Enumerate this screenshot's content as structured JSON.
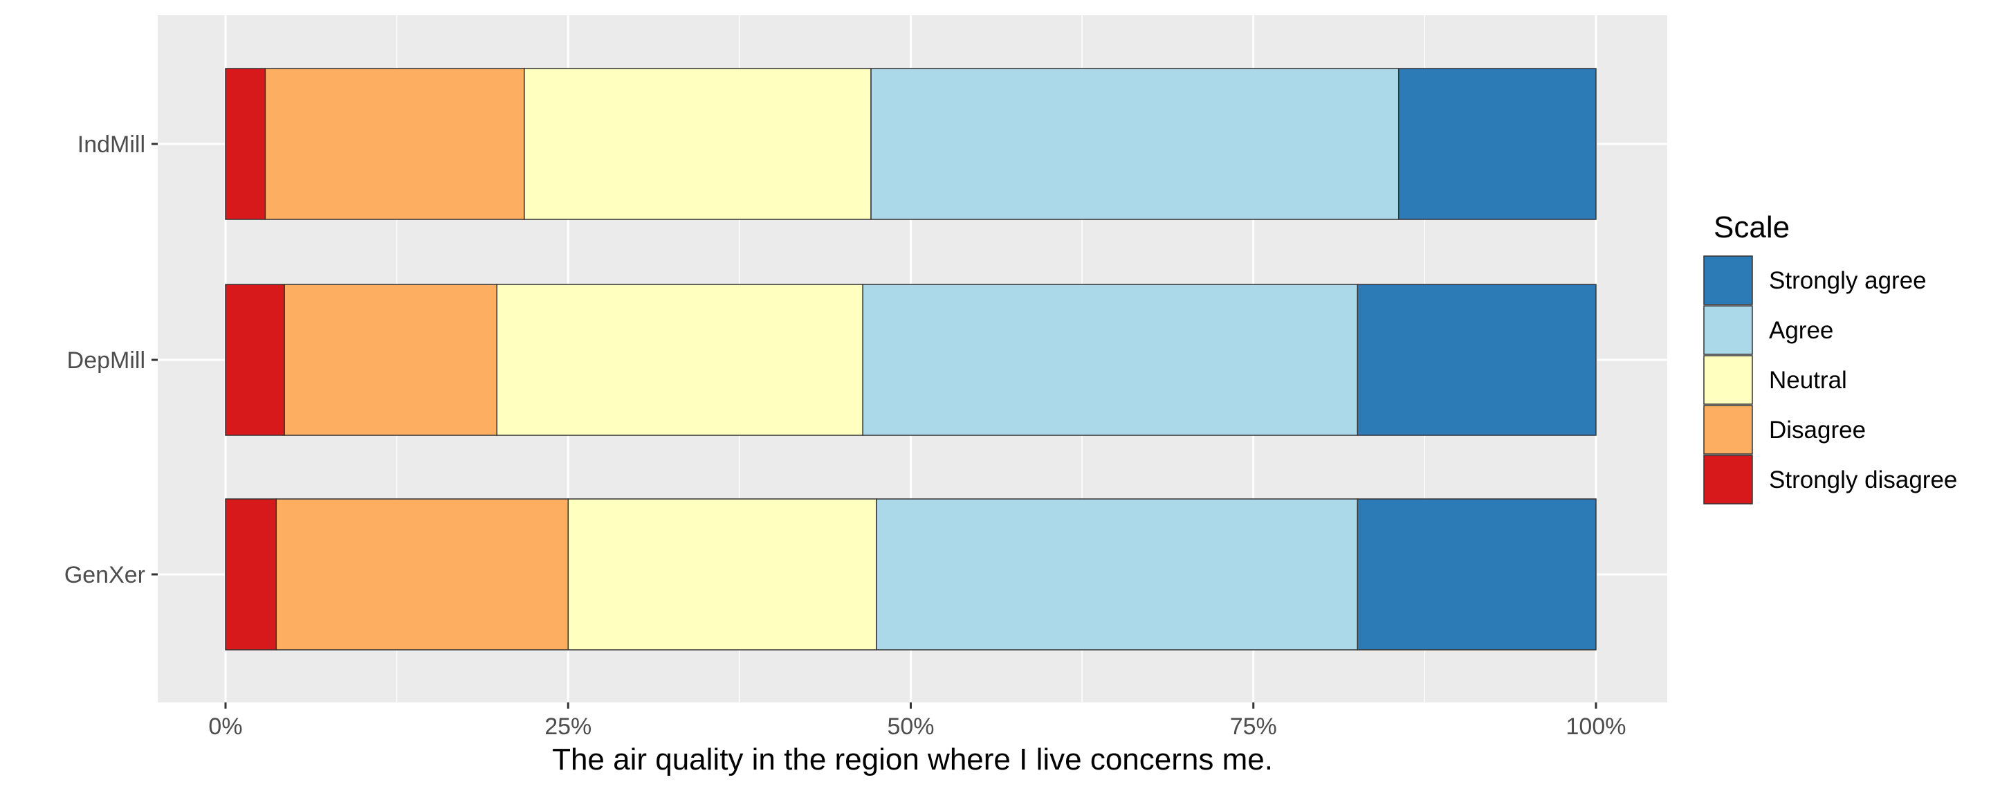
{
  "chart_data": {
    "type": "bar",
    "orientation": "horizontal",
    "stacked": "percent",
    "categories": [
      "GenXer",
      "DepMill",
      "IndMill"
    ],
    "series": [
      {
        "name": "Strongly disagree",
        "color": "#d7191c",
        "values": [
          3.7,
          4.3,
          2.9
        ]
      },
      {
        "name": "Disagree",
        "color": "#fdae61",
        "values": [
          21.3,
          15.5,
          18.9
        ]
      },
      {
        "name": "Neutral",
        "color": "#ffffbf",
        "values": [
          22.5,
          26.7,
          25.3
        ]
      },
      {
        "name": "Agree",
        "color": "#abd9e9",
        "values": [
          35.1,
          36.1,
          38.5
        ]
      },
      {
        "name": "Strongly agree",
        "color": "#2c7bb6",
        "values": [
          17.4,
          17.4,
          14.4
        ]
      }
    ],
    "xlabel": "The air quality in the region where I live concerns me.",
    "ylabel": "",
    "xlim": [
      0,
      100
    ],
    "x_ticks": [
      "0%",
      "25%",
      "50%",
      "75%",
      "100%"
    ],
    "grid": true,
    "panel_background": "#ebebeb",
    "legend": {
      "title": "Scale",
      "position": "right",
      "entries": [
        "Strongly agree",
        "Agree",
        "Neutral",
        "Disagree",
        "Strongly disagree"
      ]
    }
  }
}
